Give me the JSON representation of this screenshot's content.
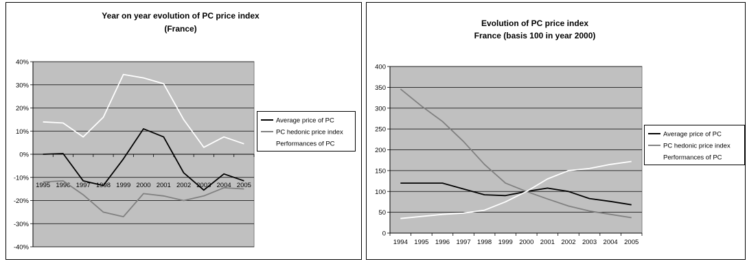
{
  "colors": {
    "plot_bg": "#c0c0c0",
    "grid": "#000000",
    "series_black": "#000000",
    "series_gray": "#808080",
    "series_white": "#ffffff"
  },
  "chart_data": [
    {
      "type": "line",
      "title": "Year on year evolution of PC price index",
      "subtitle": "(France)",
      "categories": [
        "1995",
        "1996",
        "1997",
        "1998",
        "1999",
        "2000",
        "2001",
        "2002",
        "2003",
        "2004",
        "2005"
      ],
      "y_ticks": [
        "40%",
        "30%",
        "20%",
        "10%",
        "0%",
        "-10%",
        "-20%",
        "-30%",
        "-40%"
      ],
      "ylim": [
        -40,
        40
      ],
      "y_unit": "%",
      "grid": true,
      "legend_position": "right",
      "series": [
        {
          "name": "Average price of PC",
          "color": "#000000",
          "values": [
            0,
            0.3,
            -11.5,
            -13.5,
            -2,
            11,
            7.5,
            -8,
            -15.5,
            -8.5,
            -11.5
          ]
        },
        {
          "name": "PC hedonic price index",
          "color": "#808080",
          "values": [
            -12,
            -11.5,
            -17.5,
            -25,
            -27,
            -17,
            -18,
            -20,
            -18,
            -14.5,
            -15
          ]
        },
        {
          "name": "Performances of PC",
          "color": "#ffffff",
          "values": [
            14,
            13.5,
            7.5,
            16,
            34.5,
            33,
            30.5,
            15,
            3,
            7.5,
            4.5
          ]
        }
      ]
    },
    {
      "type": "line",
      "title": "Evolution of PC price index",
      "subtitle": "France (basis 100 in year 2000)",
      "categories": [
        "1994",
        "1995",
        "1996",
        "1997",
        "1998",
        "1999",
        "2000",
        "2001",
        "2002",
        "2003",
        "2004",
        "2005"
      ],
      "y_ticks": [
        "400",
        "350",
        "300",
        "250",
        "200",
        "150",
        "100",
        "50",
        "0"
      ],
      "ylim": [
        0,
        400
      ],
      "grid": true,
      "legend_position": "right",
      "series": [
        {
          "name": "Average price of PC",
          "color": "#000000",
          "values": [
            120,
            120,
            120,
            106,
            92,
            90,
            100,
            108,
            100,
            83,
            76,
            68
          ]
        },
        {
          "name": "PC hedonic price index",
          "color": "#808080",
          "values": [
            346,
            305,
            268,
            220,
            165,
            120,
            100,
            82,
            65,
            53,
            45,
            37
          ]
        },
        {
          "name": "Performances of PC",
          "color": "#ffffff",
          "values": [
            35,
            40,
            45,
            48,
            55,
            75,
            100,
            130,
            150,
            155,
            165,
            172
          ]
        }
      ]
    }
  ]
}
